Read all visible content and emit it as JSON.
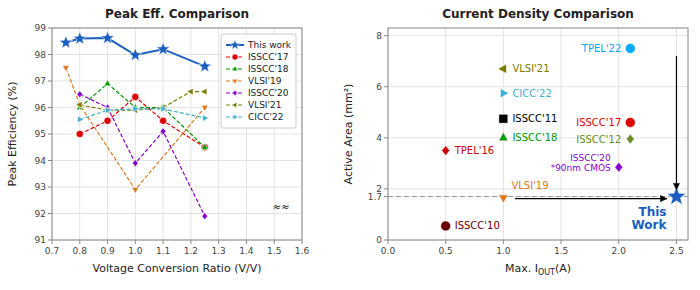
{
  "chart_data": [
    {
      "type": "line",
      "title": "Peak Eff. Comparison",
      "x_label": "Voltage Conversion Ratio (V/V)",
      "y_label": "Peak Efficiency (%)",
      "xlim": [
        0.7,
        1.6
      ],
      "ylim": [
        91,
        99
      ],
      "xticks": [
        0.7,
        0.8,
        0.9,
        {
          "value": 1.0,
          "label": "1.0"
        },
        1.1,
        1.2,
        1.3,
        1.4,
        1.5,
        1.6
      ],
      "yticks": [
        91,
        92,
        93,
        94,
        95,
        96,
        97,
        98,
        99
      ],
      "grid": true,
      "legend": "upper right",
      "series": [
        {
          "name": "This work",
          "color": "#1a5fbf",
          "marker": "star",
          "line_style": "solid",
          "x": [
            0.75,
            0.8,
            0.9,
            1.0,
            1.1,
            1.25
          ],
          "values": [
            98.45,
            98.6,
            98.62,
            97.98,
            98.2,
            97.55
          ]
        },
        {
          "name": "ISSCC'17",
          "color": "#dd0000",
          "marker": "circle",
          "line_style": "dashed",
          "x": [
            0.8,
            0.9,
            1.0,
            1.1,
            1.25
          ],
          "values": [
            95.0,
            95.5,
            96.4,
            95.5,
            94.5
          ]
        },
        {
          "name": "ISSCC'18",
          "color": "#009900",
          "marker": "triangle-up",
          "line_style": "dashed",
          "x": [
            0.8,
            0.9,
            1.0,
            1.1,
            1.25
          ],
          "values": [
            96.0,
            96.9,
            96.0,
            96.0,
            94.5
          ]
        },
        {
          "name": "VLSI'19",
          "color": "#e07820",
          "marker": "triangle-down",
          "line_style": "dashed",
          "x": [
            0.75,
            0.8,
            1.0,
            1.25
          ],
          "values": [
            97.5,
            96.1,
            92.9,
            96.0
          ]
        },
        {
          "name": "ISSCC'20",
          "color": "#8800cc",
          "marker": "diamond",
          "line_style": "dashed",
          "x": [
            0.8,
            0.9,
            1.0,
            1.1,
            1.25
          ],
          "values": [
            96.5,
            96.0,
            93.9,
            95.1,
            91.9
          ]
        },
        {
          "name": "VLSI'21",
          "color": "#7a7a00",
          "marker": "triangle-left",
          "line_style": "dashed",
          "x": [
            0.8,
            0.9,
            1.0,
            1.1,
            1.2,
            1.25
          ],
          "values": [
            96.1,
            95.9,
            95.9,
            96.0,
            96.6,
            96.6
          ]
        },
        {
          "name": "CICC'22",
          "color": "#40b0d0",
          "marker": "triangle-right",
          "line_style": "dashed",
          "x": [
            0.8,
            0.9,
            1.0,
            1.1,
            1.25
          ],
          "values": [
            95.55,
            95.9,
            95.95,
            95.95,
            95.6
          ]
        }
      ],
      "annotations": [
        {
          "type": "text",
          "text": "≈≈",
          "x": 1.525,
          "y": 92.07
        }
      ]
    },
    {
      "type": "scatter",
      "title": "Current Density Comparison",
      "x_label": "Max. I",
      "x_label_sub": "OUT",
      "x_label_end": "(A)",
      "y_label": "Active Area (mm²)",
      "xlim": [
        0,
        2.6
      ],
      "ylim": [
        0,
        8.3
      ],
      "xticks": [
        {
          "value": 0,
          "label": "0.0"
        },
        0.5,
        {
          "value": 1.0,
          "label": "1.0"
        },
        1.5,
        {
          "value": 2.0,
          "label": "2.0"
        },
        2.5
      ],
      "yticks": [
        0,
        1.7,
        2,
        4,
        6,
        8
      ],
      "grid": true,
      "series": [
        {
          "name": "TPEL'22",
          "color": "#00aaff",
          "marker": "circle",
          "x": [
            2.1
          ],
          "values": [
            7.5
          ]
        },
        {
          "name": "VLSI'21",
          "color": "#7a7a00",
          "marker": "triangle-left",
          "x": [
            1.0
          ],
          "values": [
            6.7
          ]
        },
        {
          "name": "CICC'22",
          "color": "#40b0d0",
          "marker": "triangle-right",
          "x": [
            1.0
          ],
          "values": [
            5.75
          ]
        },
        {
          "name": "ISSCC'11",
          "color": "#000000",
          "marker": "square",
          "x": [
            1.0
          ],
          "values": [
            4.75
          ]
        },
        {
          "name": "ISSCC'17",
          "color": "#dd0000",
          "marker": "circle",
          "x": [
            2.1
          ],
          "values": [
            4.6
          ]
        },
        {
          "name": "ISSCC'18",
          "color": "#009900",
          "marker": "triangle-up",
          "x": [
            1.0
          ],
          "values": [
            4.0
          ]
        },
        {
          "name": "ISSCC'12",
          "color": "#6b8e23",
          "marker": "diamond",
          "x": [
            2.1
          ],
          "values": [
            3.95
          ]
        },
        {
          "name": "TPEL'16",
          "color": "#cc0000",
          "marker": "diamond",
          "x": [
            0.5
          ],
          "values": [
            3.5
          ]
        },
        {
          "name": "ISSCC'20\n*90nm CMOS",
          "color": "#8800cc",
          "marker": "diamond",
          "x": [
            2.0
          ],
          "values": [
            2.85
          ]
        },
        {
          "name": "VLSI'19",
          "color": "#e07820",
          "marker": "triangle-down",
          "x": [
            1.0
          ],
          "values": [
            1.65
          ]
        },
        {
          "name": "ISSCC'10",
          "color": "#660000",
          "marker": "circle",
          "x": [
            0.5
          ],
          "values": [
            0.55
          ]
        },
        {
          "name": "This\nWork",
          "color": "#1a5fbf",
          "marker": "star",
          "x": [
            2.5
          ],
          "values": [
            1.7
          ]
        }
      ],
      "annotations": [
        {
          "type": "hline",
          "y": 1.7
        },
        {
          "type": "arrow",
          "x1": 1.1,
          "y1": 1.62,
          "x2": 2.42,
          "y2": 1.62
        },
        {
          "type": "arrow",
          "x1": 2.5,
          "y1": 7.2,
          "x2": 2.5,
          "y2": 1.95
        }
      ]
    }
  ]
}
